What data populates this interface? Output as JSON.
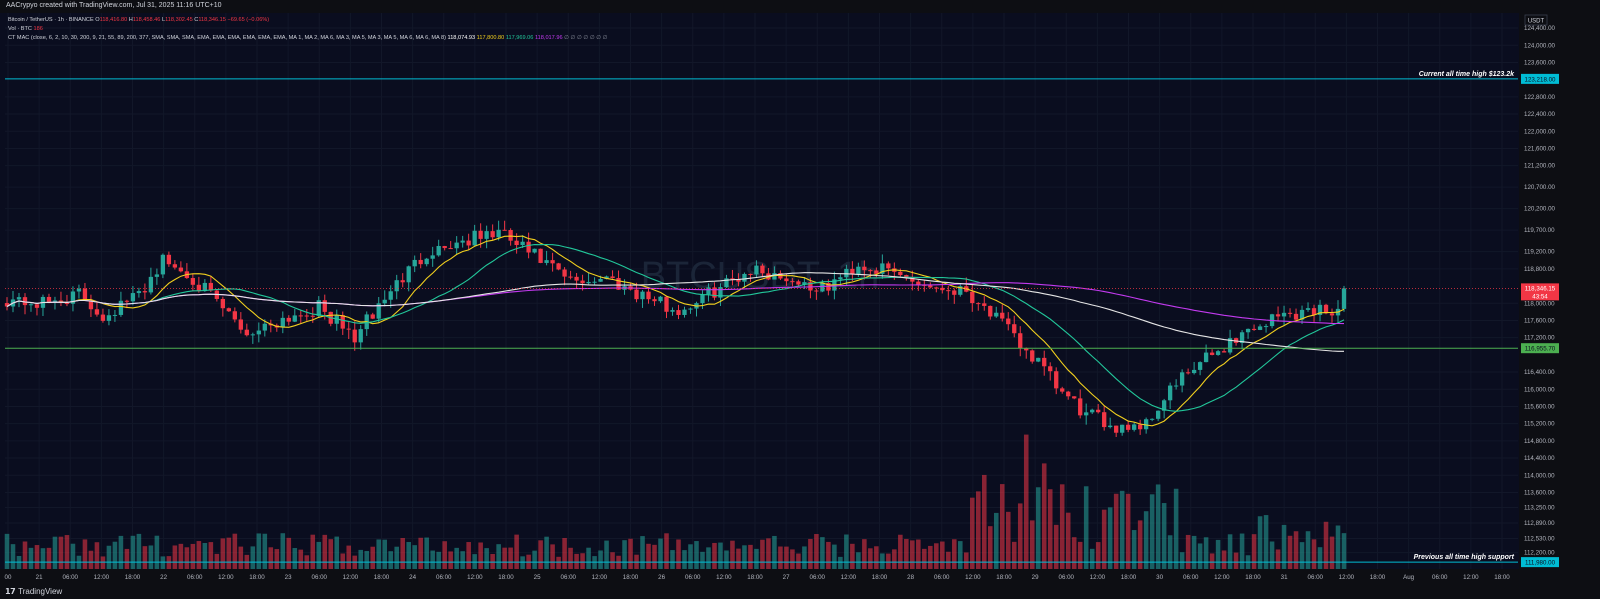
{
  "header": {
    "creator_line": "AACrypyo created with TradingView.com, Jul 31, 2025 11:16 UTC+10"
  },
  "legend": {
    "symbol_line": "Bitcoin / TetherUS · 1h · BINANCE",
    "ohlc": {
      "open_label": "O",
      "open": "118,416.80",
      "high_label": "H",
      "high": "118,458.46",
      "low_label": "L",
      "low": "118,302.45",
      "close_label": "C",
      "close": "118,346.15",
      "change": "−69.65 (−0.06%)"
    },
    "volume_line": "Vol · BTC",
    "volume_value": "186",
    "indicator_line": "CT MAC (close, 6, 2, 10, 30, 200, 9, 21, 55, 89, 200, 377, SMA, SMA, SMA, EMA, EMA, EMA, EMA, EMA, EMA, MA 1, MA 2, MA 6, MA 3, MA 5, MA 3, MA 5, MA 6, MA 6, MA 8)",
    "indicator_values": [
      "118,074.93",
      "117,800.80",
      "117,969.06",
      "118,017.96"
    ],
    "indicator_placeholder": "∅ ∅ ∅ ∅ ∅ ∅ ∅"
  },
  "watermark": {
    "symbol": "BTCUSDT, 1h",
    "subtitle": "Bitcoin / TetherUS"
  },
  "price_axis": {
    "currency": "USDT",
    "last_price": "118,346.15",
    "countdown": "43:54"
  },
  "bottom_bar": {
    "brand": "TradingView"
  },
  "colors": {
    "background": "#0d0e13",
    "up": "#26a69a",
    "down": "#f23645",
    "ma_yellow": "#f2d01e",
    "ma_green": "#22c79a",
    "ma_purple": "#c33af0",
    "ma_white": "#e6e6e6",
    "resistance_line": "#00bcd4",
    "support_line": "#4caf50"
  },
  "chart_data": {
    "type": "candlestick",
    "symbol": "BTCUSDT",
    "timeframe": "1h",
    "x_tick_labels": [
      "00",
      "21",
      "06:00",
      "12:00",
      "18:00",
      "22",
      "06:00",
      "12:00",
      "18:00",
      "23",
      "06:00",
      "12:00",
      "18:00",
      "24",
      "06:00",
      "12:00",
      "18:00",
      "25",
      "06:00",
      "12:00",
      "18:00",
      "26",
      "06:00",
      "12:00",
      "18:00",
      "27",
      "06:00",
      "12:00",
      "18:00",
      "28",
      "06:00",
      "12:00",
      "18:00",
      "29",
      "06:00",
      "12:00",
      "18:00",
      "30",
      "06:00",
      "12:00",
      "18:00",
      "31",
      "06:00",
      "12:00",
      "18:00",
      "Aug",
      "06:00",
      "12:00",
      "18:00"
    ],
    "y_tick_labels": [
      "124,400.00",
      "124,000.00",
      "123,600.00",
      "122,800.00",
      "122,400.00",
      "122,000.00",
      "121,600.00",
      "121,200.00",
      "120,700.00",
      "120,200.00",
      "119,700.00",
      "119,200.00",
      "118,800.00",
      "118,000.00",
      "117,600.00",
      "117,200.00",
      "116,400.00",
      "116,000.00",
      "115,600.00",
      "115,200.00",
      "114,800.00",
      "114,400.00",
      "114,000.00",
      "113,600.00",
      "113,250.00",
      "112,890.00",
      "112,530.00",
      "112,200.00"
    ],
    "y_tick_values": [
      124400,
      124000,
      123600,
      122800,
      122400,
      122000,
      121600,
      121200,
      120700,
      120200,
      119700,
      119200,
      118800,
      118000,
      117600,
      117200,
      116400,
      116000,
      115600,
      115200,
      114800,
      114400,
      114000,
      113600,
      113250,
      112890,
      112530,
      112200
    ],
    "ylim": [
      111820,
      124750
    ],
    "hours_visible": 224,
    "candles_shown": 224,
    "price_path_keypoints": [
      [
        0,
        118100
      ],
      [
        6,
        117980
      ],
      [
        12,
        118200
      ],
      [
        16,
        117700
      ],
      [
        22,
        118200
      ],
      [
        26,
        119000
      ],
      [
        31,
        118600
      ],
      [
        35,
        118000
      ],
      [
        40,
        117300
      ],
      [
        46,
        117650
      ],
      [
        52,
        117900
      ],
      [
        58,
        117200
      ],
      [
        64,
        118300
      ],
      [
        70,
        119200
      ],
      [
        76,
        119450
      ],
      [
        82,
        119650
      ],
      [
        88,
        119100
      ],
      [
        94,
        118500
      ],
      [
        100,
        118600
      ],
      [
        106,
        118200
      ],
      [
        112,
        117800
      ],
      [
        118,
        118300
      ],
      [
        124,
        118800
      ],
      [
        130,
        118600
      ],
      [
        136,
        118300
      ],
      [
        142,
        118900
      ],
      [
        148,
        118700
      ],
      [
        154,
        118400
      ],
      [
        160,
        118300
      ],
      [
        164,
        117800
      ],
      [
        168,
        117200
      ],
      [
        172,
        116600
      ],
      [
        176,
        115900
      ],
      [
        180,
        115400
      ],
      [
        185,
        115150
      ],
      [
        190,
        115200
      ],
      [
        194,
        116000
      ],
      [
        200,
        116700
      ],
      [
        206,
        117300
      ],
      [
        212,
        117700
      ],
      [
        218,
        117850
      ],
      [
        224,
        117900
      ]
    ],
    "volume_bars_count": 224,
    "moving_averages": [
      {
        "name": "MA yellow",
        "value": "117,800.80"
      },
      {
        "name": "MA green",
        "value": "117,969.06"
      },
      {
        "name": "MA purple",
        "value": "118,017.96"
      },
      {
        "name": "MA white",
        "value": "118,074.93"
      }
    ],
    "horizontal_levels": [
      {
        "label": "Current all time high $123.2k",
        "price": 123218,
        "price_label": "123,218.00"
      },
      {
        "label": "",
        "price": 116955,
        "price_label": "116,955.70"
      },
      {
        "label": "Previous all time high support",
        "price": 111980,
        "price_label": "111,980.00"
      }
    ],
    "last_price": 118346.15
  }
}
